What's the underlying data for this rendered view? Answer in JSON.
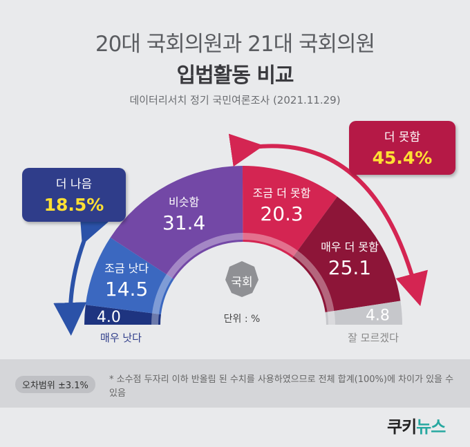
{
  "header": {
    "title_line1": "20대 국회의원과 21대 국회의원",
    "title_line2": "입법활동 비교",
    "subtitle": "데이터리서치 정기 국민여론조사 (2021.11.29)"
  },
  "chart_data": {
    "type": "pie",
    "variant": "semicircle",
    "unit_label": "단위 : %",
    "slices": [
      {
        "label": "매우 낫다",
        "value": 4.0,
        "color": "#1e3480"
      },
      {
        "label": "조금 낫다",
        "value": 14.5,
        "color": "#3b68c0"
      },
      {
        "label": "비슷함",
        "value": 31.4,
        "color": "#7348a6"
      },
      {
        "label": "조금 더 못함",
        "value": 20.3,
        "color": "#d42552"
      },
      {
        "label": "매우 더 못함",
        "value": 25.1,
        "color": "#8d1538"
      },
      {
        "label": "잘 모르겠다",
        "value": 4.8,
        "color": "#c6c7cb"
      }
    ],
    "groups": {
      "better": {
        "label": "더 나음",
        "value_text": "18.5%"
      },
      "worse": {
        "label": "더 못함",
        "value_text": "45.4%"
      }
    }
  },
  "center_emblem": "국회",
  "notes": {
    "error_margin": "오차범위 ±3.1%",
    "footnote": "* 소수점 두자리 이하 반올림 된 수치를 사용하였으므로 전체 합계(100%)에 차이가 있을 수 있음"
  },
  "logo": {
    "part1": "쿠키",
    "part2": "뉴스"
  },
  "colors": {
    "better_box": "#2f3d8a",
    "worse_box": "#b51946",
    "highlight": "#ffe033"
  }
}
